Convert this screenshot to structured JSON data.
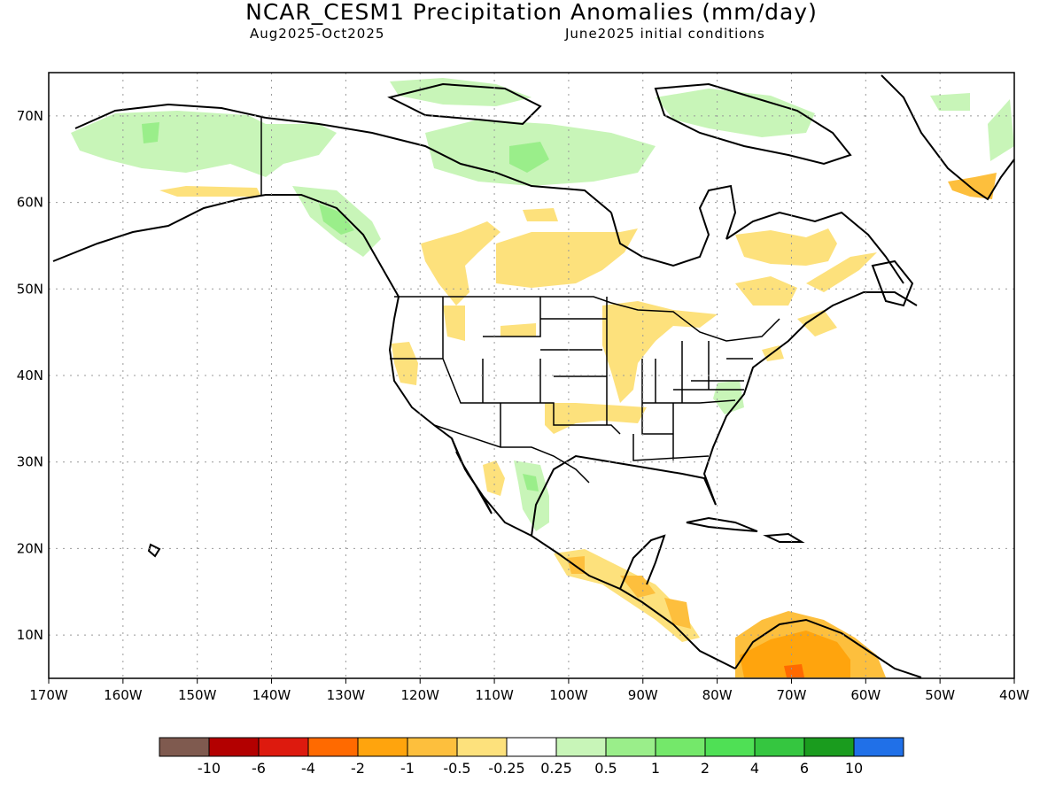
{
  "title": "NCAR_CESM1 Precipitation Anomalies (mm/day)",
  "subtitle_left": "Aug2025-Oct2025",
  "subtitle_right": "June2025 initial conditions",
  "map": {
    "lon_range": [
      -170,
      -40
    ],
    "lat_range": [
      5,
      75
    ],
    "lon_ticks": [
      {
        "lon": -170,
        "label": "170W"
      },
      {
        "lon": -160,
        "label": "160W"
      },
      {
        "lon": -150,
        "label": "150W"
      },
      {
        "lon": -140,
        "label": "140W"
      },
      {
        "lon": -130,
        "label": "130W"
      },
      {
        "lon": -120,
        "label": "120W"
      },
      {
        "lon": -110,
        "label": "110W"
      },
      {
        "lon": -100,
        "label": "100W"
      },
      {
        "lon": -90,
        "label": "90W"
      },
      {
        "lon": -80,
        "label": "80W"
      },
      {
        "lon": -70,
        "label": "70W"
      },
      {
        "lon": -60,
        "label": "60W"
      },
      {
        "lon": -50,
        "label": "50W"
      },
      {
        "lon": -40,
        "label": "40W"
      }
    ],
    "lat_ticks": [
      {
        "lat": 10,
        "label": "10N"
      },
      {
        "lat": 20,
        "label": "20N"
      },
      {
        "lat": 30,
        "label": "30N"
      },
      {
        "lat": 40,
        "label": "40N"
      },
      {
        "lat": 50,
        "label": "50N"
      },
      {
        "lat": 60,
        "label": "60N"
      },
      {
        "lat": 70,
        "label": "70N"
      }
    ],
    "gridlines": "dotted"
  },
  "colorbar": {
    "colors": [
      "#7f5a4f",
      "#b30000",
      "#dd1a0e",
      "#ff6a00",
      "#ffa40d",
      "#fdbf3d",
      "#fde17c",
      "#ffffff",
      "#c8f5b8",
      "#9aee8a",
      "#74e86a",
      "#4fe055",
      "#35c640",
      "#1a9c1e",
      "#2070e8"
    ],
    "labels": [
      "-10",
      "-6",
      "-4",
      "-2",
      "-1",
      "-0.5",
      "-0.25",
      "0.25",
      "0.5",
      "1",
      "2",
      "4",
      "6",
      "10"
    ]
  }
}
